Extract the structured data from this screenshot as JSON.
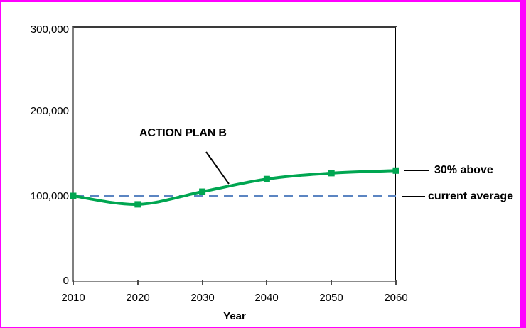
{
  "figure": {
    "frame_color": "#ff00ff",
    "background_color": "#ffffff"
  },
  "chart_data": {
    "type": "line",
    "title": "",
    "xlabel": "Year",
    "ylabel": "",
    "x": [
      2010,
      2020,
      2030,
      2040,
      2050,
      2060
    ],
    "x_tick_labels": [
      "2010",
      "2020",
      "2030",
      "2040",
      "2050",
      "2060"
    ],
    "y_ticks": [
      0,
      100000,
      200000,
      300000
    ],
    "y_tick_labels": [
      "0",
      "100,000",
      "200,000",
      "300,000"
    ],
    "xlim": [
      2010,
      2060
    ],
    "ylim": [
      0,
      300000
    ],
    "grid": false,
    "legend_position": "none",
    "series": [
      {
        "name": "ACTION PLAN B",
        "type": "smooth-line",
        "color": "#00a651",
        "marker": "square",
        "line_width": 4,
        "values": [
          100000,
          90000,
          105000,
          120000,
          127000,
          130000
        ]
      },
      {
        "name": "current average",
        "type": "reference-line",
        "style": "dashed",
        "color": "#5b85c2",
        "line_width": 3,
        "value": 100000
      }
    ],
    "annotations": [
      {
        "text": "ACTION PLAN B"
      },
      {
        "text": "30% above"
      },
      {
        "text": "current average"
      }
    ]
  }
}
